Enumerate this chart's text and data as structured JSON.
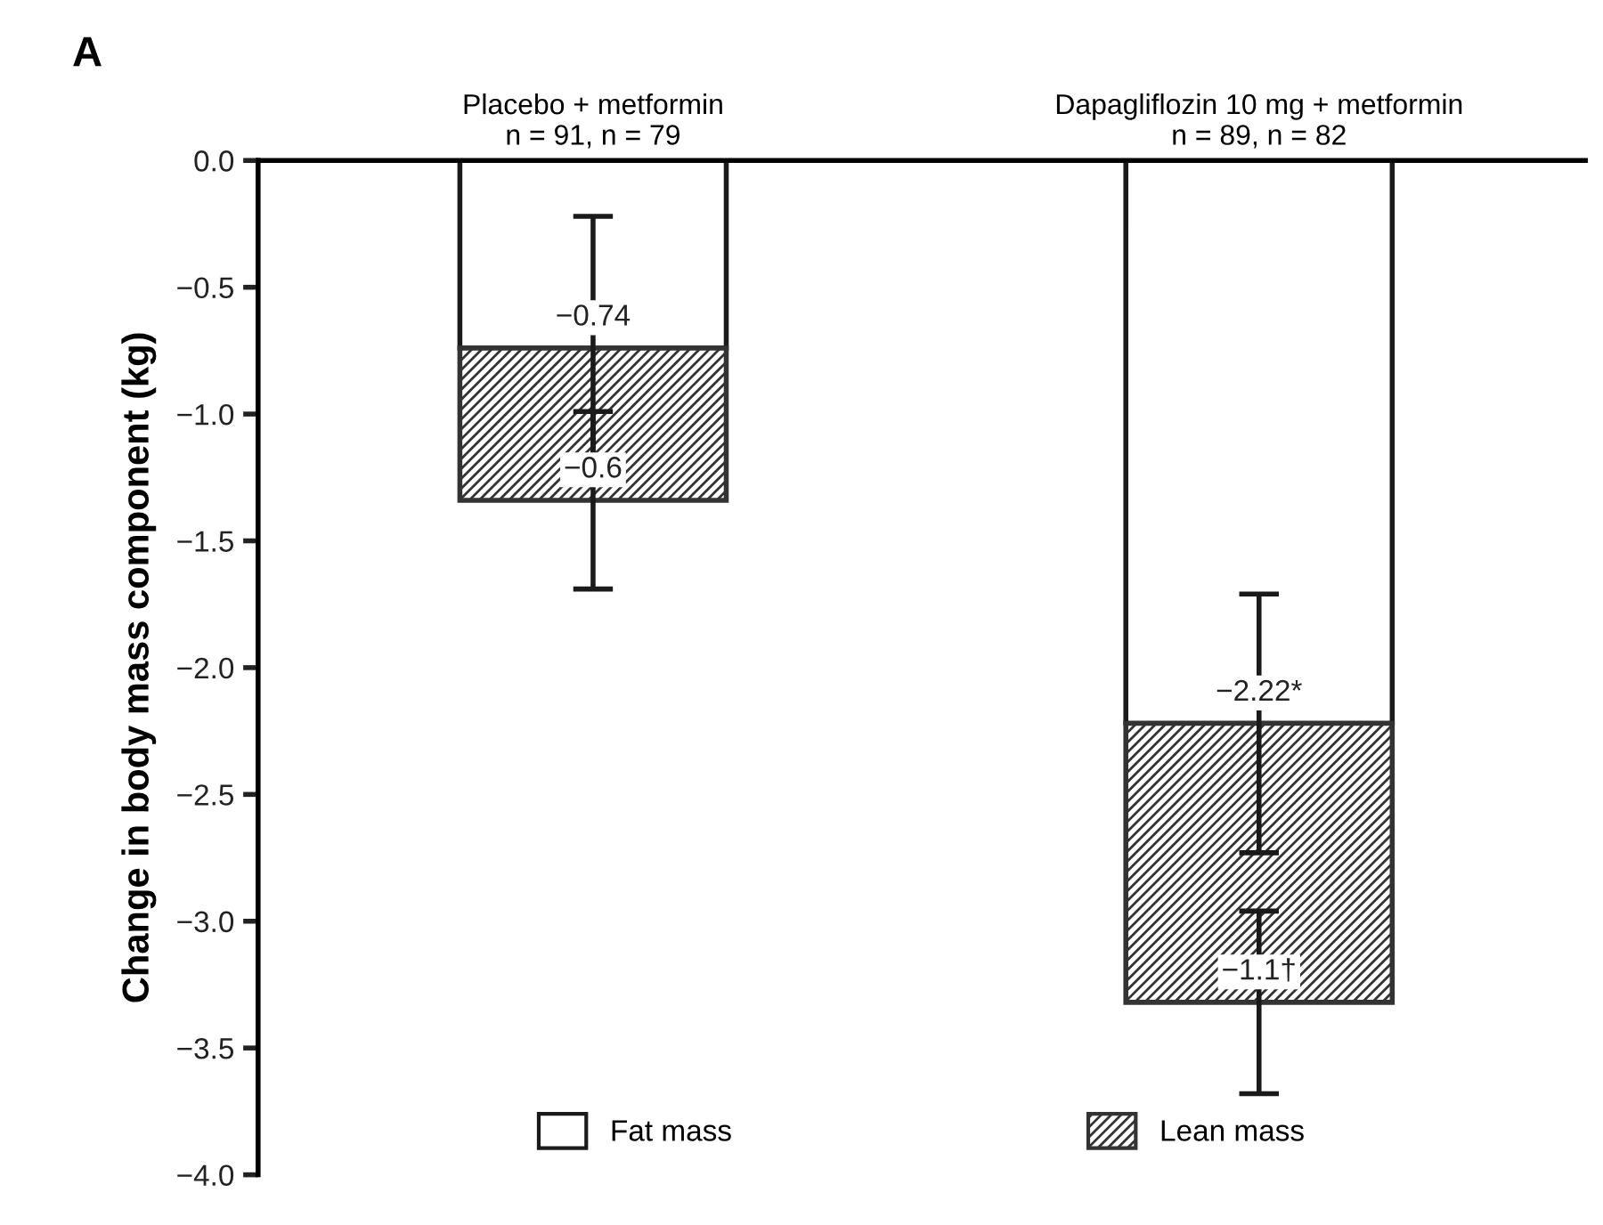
{
  "chart_data": {
    "type": "bar",
    "title": "A",
    "ylabel": "Change in body mass component (kg)",
    "categories": [
      "Placebo + metformin\nn = 91, n = 79",
      "Dapagliflozin 10 mg + metformin\nn = 89, n = 82"
    ],
    "stacked": true,
    "series": [
      {
        "name": "Fat mass",
        "color": "#ffffff",
        "values": [
          -0.74,
          -2.22
        ],
        "errors": [
          0.52,
          0.51
        ],
        "value_labels": [
          "−0.74",
          "−2.22*"
        ]
      },
      {
        "name": "Lean mass",
        "color": "#333333",
        "values": [
          -0.6,
          -1.1
        ],
        "errors": [
          0.35,
          0.36
        ],
        "value_labels": [
          "−0.6",
          "−1.1†"
        ]
      }
    ],
    "ylim": [
      -4.0,
      0.0
    ],
    "yticks": [
      {
        "value": 0.0,
        "label": "0.0"
      },
      {
        "value": -0.5,
        "label": "−0.5"
      },
      {
        "value": -1.0,
        "label": "−1.0"
      },
      {
        "value": -1.5,
        "label": "−1.5"
      },
      {
        "value": -2.0,
        "label": "−2.0"
      },
      {
        "value": -2.5,
        "label": "−2.5"
      },
      {
        "value": -3.0,
        "label": "−3.0"
      },
      {
        "value": -3.5,
        "label": "−3.5"
      },
      {
        "value": -4.0,
        "label": "−4.0"
      }
    ],
    "grid": false,
    "legend": "bottom"
  }
}
